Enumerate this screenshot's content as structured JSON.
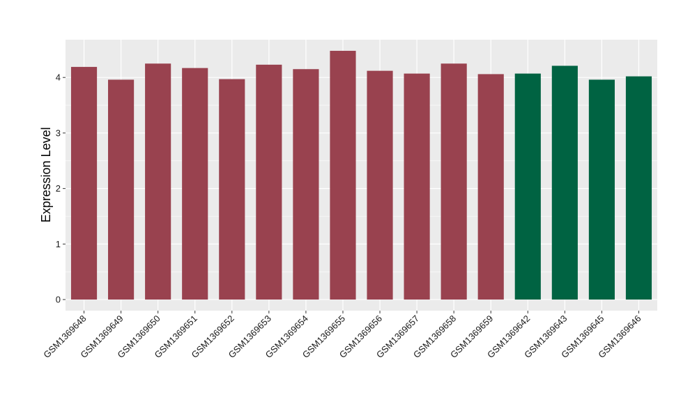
{
  "chart_data": {
    "type": "bar",
    "title": "",
    "xlabel": "",
    "ylabel": "Expression Level",
    "ylim": [
      -0.2,
      4.68
    ],
    "yticks": [
      0,
      1,
      2,
      3,
      4
    ],
    "grid": true,
    "categories": [
      "GSM1369648",
      "GSM1369649",
      "GSM1369650",
      "GSM1369651",
      "GSM1369652",
      "GSM1369653",
      "GSM1369654",
      "GSM1369655",
      "GSM1369656",
      "GSM1369657",
      "GSM1369658",
      "GSM1369659",
      "GSM1369642",
      "GSM1369643",
      "GSM1369645",
      "GSM1369646"
    ],
    "values": [
      4.19,
      3.96,
      4.25,
      4.17,
      3.97,
      4.23,
      4.15,
      4.48,
      4.12,
      4.07,
      4.25,
      4.06,
      4.07,
      4.21,
      3.96,
      4.02
    ],
    "groups": [
      0,
      0,
      0,
      0,
      0,
      0,
      0,
      0,
      0,
      0,
      0,
      0,
      1,
      1,
      1,
      1
    ],
    "colors": [
      "#99424f",
      "#006342"
    ],
    "panel_background": "#ebebeb",
    "gridline_color": "#ffffff"
  }
}
